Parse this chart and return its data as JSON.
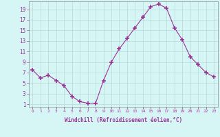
{
  "x": [
    0,
    1,
    2,
    3,
    4,
    5,
    6,
    7,
    8,
    9,
    10,
    11,
    12,
    13,
    14,
    15,
    16,
    17,
    18,
    19,
    20,
    21,
    22,
    23
  ],
  "y": [
    7.5,
    6.0,
    6.5,
    5.5,
    4.5,
    2.5,
    1.5,
    1.2,
    1.2,
    5.5,
    9.0,
    11.5,
    13.5,
    15.5,
    17.5,
    19.5,
    20.0,
    19.2,
    15.5,
    13.2,
    10.0,
    8.5,
    7.0,
    6.2
  ],
  "line_color": "#993399",
  "marker": "+",
  "marker_size": 4,
  "bg_color": "#d6f5f5",
  "grid_color": "#b8d8d8",
  "xlabel": "Windchill (Refroidissement éolien,°C)",
  "yticks": [
    1,
    3,
    5,
    7,
    9,
    11,
    13,
    15,
    17,
    19
  ],
  "xticks": [
    0,
    1,
    2,
    3,
    4,
    5,
    6,
    7,
    8,
    9,
    10,
    11,
    12,
    13,
    14,
    15,
    16,
    17,
    18,
    19,
    20,
    21,
    22,
    23
  ],
  "ylim": [
    0.5,
    20.5
  ],
  "xlim": [
    -0.5,
    23.5
  ],
  "axis_color": "#888888",
  "tick_label_color": "#993399",
  "xlabel_fontsize": 5.5,
  "xtick_fontsize": 4.5,
  "ytick_fontsize": 5.5
}
